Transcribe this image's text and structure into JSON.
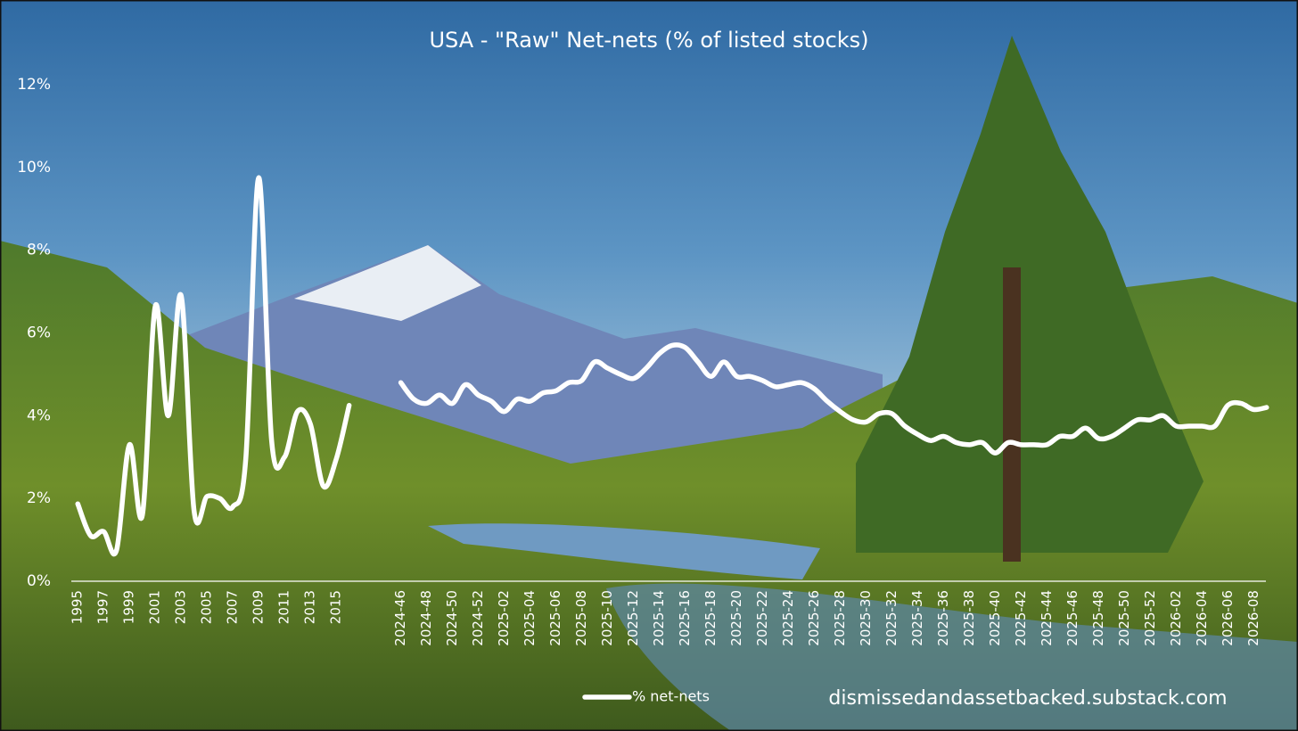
{
  "chart_data": {
    "type": "line",
    "title": "USA - \"Raw\" Net-nets (% of listed stocks)",
    "annotations": [
      "dismissedandassetbacked.substack.com"
    ],
    "categories": [
      "1995",
      null,
      "1997",
      null,
      "1999",
      null,
      "2001",
      null,
      "2003",
      null,
      "2005",
      null,
      "2007",
      null,
      "2009",
      null,
      "2011",
      null,
      "2013",
      null,
      "2015",
      null,
      null,
      null,
      null,
      "2024-46",
      null,
      "2024-48",
      null,
      "2024-50",
      null,
      "2024-52",
      null,
      "2025-02",
      null,
      "2025-04",
      null,
      "2025-06",
      null,
      "2025-08",
      null,
      "2025-10",
      null,
      "2025-12",
      null,
      "2025-14",
      null,
      "2025-16",
      null,
      "2025-18",
      null,
      "2025-20",
      null,
      "2025-22",
      null,
      "2025-24",
      null,
      "2025-26",
      null,
      "2025-28",
      null,
      "2025-30",
      null,
      "2025-32",
      null,
      "2025-34",
      null,
      "2025-36",
      null,
      "2025-38",
      null,
      "2025-40",
      null,
      "2025-42",
      null,
      "2025-44",
      null,
      "2025-46",
      null,
      "2025-48",
      null,
      "2025-50",
      null,
      "2025-52",
      null,
      "2026-02",
      null,
      "2026-04",
      null,
      "2026-06",
      null,
      "2026-08",
      null
    ],
    "series": [
      {
        "name": "% net-nets",
        "color": "#ffffff",
        "values": [
          1.87,
          1.1,
          1.2,
          0.75,
          3.3,
          1.6,
          6.65,
          4.0,
          6.9,
          1.7,
          2.05,
          2.0,
          1.8,
          2.95,
          9.75,
          3.4,
          3.0,
          4.1,
          3.8,
          2.3,
          2.95,
          4.25,
          null,
          null,
          null,
          4.8,
          4.4,
          4.3,
          4.5,
          4.3,
          4.75,
          4.5,
          4.35,
          4.1,
          4.4,
          4.35,
          4.55,
          4.6,
          4.8,
          4.85,
          5.3,
          5.15,
          5.0,
          4.9,
          5.15,
          5.5,
          5.7,
          5.65,
          5.3,
          4.95,
          5.3,
          4.95,
          4.95,
          4.85,
          4.7,
          4.75,
          4.8,
          4.65,
          4.35,
          4.1,
          3.9,
          3.85,
          4.05,
          4.05,
          3.75,
          3.55,
          3.4,
          3.5,
          3.35,
          3.3,
          3.35,
          3.1,
          3.35,
          3.3,
          3.3,
          3.3,
          3.5,
          3.5,
          3.7,
          3.45,
          3.5,
          3.7,
          3.9,
          3.9,
          4.0,
          3.75,
          3.75,
          3.75,
          3.75,
          4.25,
          4.3,
          4.15,
          4.2
        ]
      }
    ],
    "ylim": [
      0,
      12
    ],
    "yticks": [
      {
        "value": 0,
        "label": "0%"
      },
      {
        "value": 2,
        "label": "2%"
      },
      {
        "value": 4,
        "label": "4%"
      },
      {
        "value": 6,
        "label": "6%"
      },
      {
        "value": 8,
        "label": "8%"
      },
      {
        "value": 10,
        "label": "10%"
      },
      {
        "value": 12,
        "label": "12%"
      }
    ],
    "grid": false,
    "legend": "bottom"
  }
}
